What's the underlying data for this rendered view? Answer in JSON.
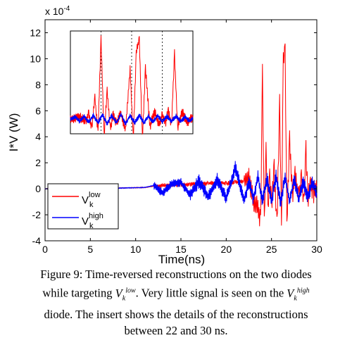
{
  "chart_data": {
    "type": "line",
    "exponent_label": "x 10",
    "exponent_power": "-4",
    "xlabel": "Time(ns)",
    "ylabel": "I*V (W)",
    "xlim": [
      0,
      30
    ],
    "ylim": [
      -4,
      13
    ],
    "x_ticks": [
      "0",
      "5",
      "10",
      "15",
      "20",
      "25",
      "30"
    ],
    "y_ticks": [
      "-4",
      "-2",
      "0",
      "2",
      "4",
      "6",
      "8",
      "10",
      "12"
    ],
    "grid": false,
    "legend": {
      "placement": "lower-left",
      "entries": [
        {
          "base": "V",
          "sub": "k",
          "sup": "low",
          "color": "#ff0000"
        },
        {
          "base": "V",
          "sub": "k",
          "sup": "high",
          "color": "#0000ff"
        }
      ]
    },
    "series": [
      {
        "id": "low",
        "color": "#ff0000",
        "x": [
          0,
          5,
          8,
          11,
          12,
          14,
          15,
          16,
          17,
          18,
          19,
          20,
          21,
          22,
          22.5,
          23,
          23.5,
          23.8,
          24,
          24.2,
          24.4,
          24.6,
          24.8,
          25,
          25.3,
          25.6,
          25.9,
          26.1,
          26.3,
          26.5,
          26.7,
          27,
          27.3,
          27.6,
          28,
          28.3,
          28.6,
          28.8,
          29,
          29.3,
          29.6,
          30
        ],
        "y": [
          0,
          0,
          0.05,
          0.1,
          0.2,
          0.3,
          0.3,
          0.35,
          0.4,
          0.4,
          0.5,
          0.4,
          0.5,
          0.6,
          0.8,
          -0.9,
          -1.5,
          -2.5,
          9,
          -2.7,
          3,
          -1.6,
          0.9,
          -1.3,
          1.5,
          -3,
          6.5,
          -3.5,
          9.8,
          10.6,
          -3,
          4,
          -0.5,
          1,
          -0.7,
          0.8,
          -1.2,
          3,
          -0.8,
          0.5,
          -0.3,
          0.2
        ]
      },
      {
        "id": "high",
        "color": "#0000ff",
        "x": [
          0,
          5,
          8,
          11,
          12,
          13,
          14,
          15,
          16,
          17,
          18,
          19,
          20,
          21,
          22,
          22.5,
          23,
          23.5,
          24,
          24.5,
          25,
          25.5,
          26,
          26.5,
          27,
          27.5,
          28,
          28.5,
          29,
          29.5,
          30
        ],
        "y": [
          0,
          0,
          0.05,
          0.1,
          0.25,
          -0.3,
          0.4,
          0.5,
          -0.5,
          0.6,
          -0.6,
          0.7,
          -0.7,
          1.6,
          -0.9,
          0.6,
          -0.8,
          1,
          -1,
          0.8,
          -1,
          1,
          -1.1,
          0.9,
          -1,
          0.8,
          -0.8,
          0.6,
          -0.7,
          0.5,
          -0.3
        ]
      }
    ],
    "inset": {
      "description_range_ns": [
        22,
        30
      ],
      "ylim": [
        -2,
        12
      ],
      "low": {
        "x": [
          22,
          22.6,
          23,
          23.2,
          23.4,
          23.6,
          23.8,
          24,
          24.2,
          24.4,
          24.6,
          24.8,
          25,
          25.3,
          25.6,
          25.9,
          26.1,
          26.3,
          26.5,
          26.7,
          26.9,
          27.2,
          27.5,
          27.8,
          28,
          28.2,
          28.4,
          28.6,
          28.8,
          29,
          29.3,
          29.6,
          30
        ],
        "y": [
          0,
          0.3,
          -0.4,
          0.8,
          -1.2,
          3,
          -2,
          11,
          -2.5,
          4,
          -1.5,
          0.6,
          -0.6,
          0.8,
          -1.5,
          7,
          -3,
          9,
          11,
          -3,
          7,
          -1,
          1,
          -0.8,
          0.5,
          -0.6,
          1.2,
          -1,
          9,
          -1.2,
          1,
          -0.4,
          0.2
        ]
      },
      "high": {
        "x": [
          22,
          22.3,
          22.6,
          22.9,
          23.2,
          23.5,
          23.8,
          24.1,
          24.4,
          24.7,
          25,
          25.3,
          25.6,
          25.9,
          26.2,
          26.5,
          26.8,
          27.1,
          27.4,
          27.7,
          28,
          28.3,
          28.6,
          28.9,
          29.2,
          29.5,
          29.8,
          30
        ],
        "y": [
          0,
          0.3,
          -0.3,
          0.4,
          -0.4,
          0.5,
          -0.5,
          0.6,
          -0.6,
          0.5,
          -0.5,
          0.6,
          -0.6,
          0.5,
          -0.5,
          0.5,
          -0.5,
          0.4,
          -0.4,
          0.5,
          -0.4,
          0.4,
          -0.3,
          0.4,
          -0.3,
          0.3,
          -0.3,
          0.2
        ]
      }
    }
  },
  "caption": {
    "line1": "Figure 9: Time-reversed reconstructions on the two diodes",
    "line2_pre": "while targeting ",
    "line2_post": ". Very little signal is seen on the ",
    "line3": "diode. The insert shows the details of the reconstructions",
    "line4": "between 22 and 30 ns.",
    "var_low": {
      "base": "V",
      "sub": "k",
      "sup": "low"
    },
    "var_high": {
      "base": "V",
      "sub": "k",
      "sup": "high"
    }
  }
}
